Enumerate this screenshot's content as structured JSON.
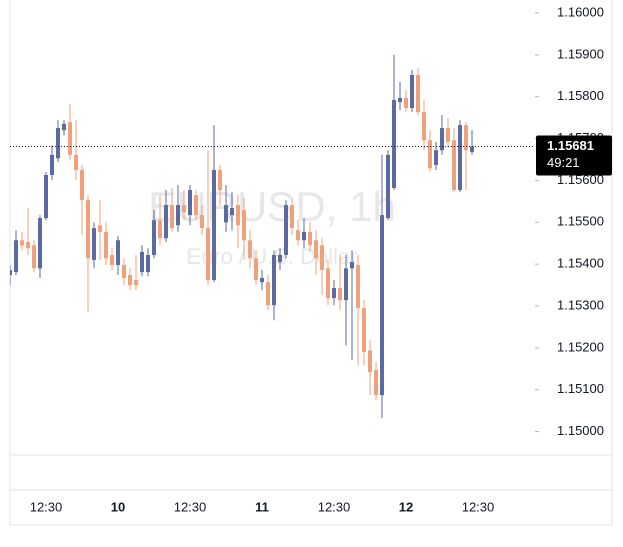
{
  "chart_data": {
    "type": "candlestick",
    "watermark": {
      "symbol": "EURUSD, 1h",
      "description": "Euro / U.S. Dollar"
    },
    "countdown": "49:21",
    "up_color": "#5b6aa0",
    "down_color": "#f0a17c",
    "categories": [
      null,
      null,
      null,
      null,
      null,
      null,
      "12:30",
      null,
      null,
      null,
      null,
      null,
      null,
      null,
      null,
      null,
      null,
      null,
      "10",
      null,
      null,
      null,
      null,
      null,
      null,
      null,
      null,
      null,
      null,
      null,
      "12:30",
      null,
      null,
      null,
      null,
      null,
      null,
      null,
      null,
      null,
      null,
      null,
      "11",
      null,
      null,
      null,
      null,
      null,
      null,
      null,
      null,
      null,
      null,
      null,
      "12:30",
      null,
      null,
      null,
      null,
      null,
      null,
      null,
      null,
      null,
      null,
      null,
      "12",
      null,
      null,
      null,
      null,
      null,
      null,
      null,
      null,
      null,
      null,
      null,
      "12:30"
    ],
    "open": [
      1.15374,
      1.15381,
      1.15457,
      1.15453,
      1.15445,
      1.1539,
      1.1551,
      1.15613,
      1.15653,
      1.1572,
      1.15739,
      1.15661,
      1.15625,
      1.15553,
      1.1541,
      1.15493,
      1.15477,
      1.15422,
      1.15398,
      1.15398,
      1.15374,
      1.15362,
      1.15381,
      1.15381,
      1.15422,
      1.15505,
      1.15462,
      1.15541,
      1.15493,
      1.15541,
      1.15517,
      1.15565,
      1.15517,
      1.15486,
      1.15362,
      1.15625,
      1.155,
      1.15517,
      1.15541,
      1.15529,
      1.15457,
      1.15414,
      1.15357,
      1.15357,
      1.15302,
      1.15405,
      1.15422,
      1.15541,
      1.15481,
      1.15457,
      1.15477,
      1.15457,
      1.15445,
      1.1539,
      1.15319,
      1.15343,
      1.15314,
      1.1539,
      1.15398,
      1.15295,
      1.15194,
      1.15147,
      1.15087,
      1.1551,
      1.15582,
      1.15787,
      1.15797,
      1.15773,
      1.15852,
      1.15763,
      1.15696,
      1.15637,
      1.15672,
      1.15725,
      1.15696,
      1.15577,
      1.15732,
      1.15668,
      null
    ],
    "high": [
      1.15398,
      1.15481,
      1.15477,
      1.15534,
      1.15457,
      1.15517,
      1.1562,
      1.15684,
      1.15744,
      1.15744,
      1.15782,
      1.15744,
      1.15637,
      1.15565,
      1.155,
      1.15553,
      1.155,
      1.15438,
      1.15467,
      1.15414,
      1.1539,
      1.15422,
      1.15445,
      1.15438,
      1.15529,
      1.15565,
      1.15577,
      1.15582,
      1.15589,
      1.15577,
      1.15589,
      1.15577,
      1.15541,
      1.15672,
      1.15732,
      1.15637,
      1.15589,
      1.15572,
      1.15565,
      1.15558,
      1.15481,
      1.15433,
      1.15386,
      1.15374,
      1.15433,
      1.15438,
      1.15553,
      1.15558,
      1.15505,
      1.1551,
      1.155,
      1.15481,
      1.15462,
      1.1541,
      1.15362,
      1.15422,
      1.15422,
      1.15433,
      1.15422,
      1.15314,
      1.15218,
      1.15166,
      1.15661,
      1.15672,
      1.159,
      1.15835,
      1.15816,
      1.15864,
      1.15868,
      1.15792,
      1.1572,
      1.15692,
      1.15756,
      1.15749,
      1.15725,
      1.15744,
      1.15739,
      1.1572,
      null
    ],
    "low": [
      1.1535,
      1.15374,
      1.15433,
      1.15422,
      1.15381,
      1.15367,
      1.15505,
      1.15601,
      1.15644,
      1.15708,
      1.15649,
      1.15601,
      1.15469,
      1.15285,
      1.1539,
      1.1541,
      1.15398,
      1.15386,
      1.15374,
      1.1535,
      1.15338,
      1.15338,
      1.15371,
      1.15371,
      1.15414,
      1.15445,
      1.15453,
      1.15477,
      1.15477,
      1.15505,
      1.15493,
      1.15505,
      1.15469,
      1.1535,
      1.15357,
      1.15541,
      1.15477,
      1.15481,
      1.15438,
      1.1541,
      1.1539,
      1.1535,
      1.15338,
      1.1529,
      1.15266,
      1.15386,
      1.15414,
      1.15469,
      1.15445,
      1.15438,
      1.15429,
      1.15374,
      1.15326,
      1.15302,
      1.15302,
      1.1529,
      1.15206,
      1.15171,
      1.15159,
      1.15159,
      1.15087,
      1.15075,
      1.15032,
      1.15505,
      1.15577,
      1.15768,
      1.15763,
      1.15763,
      1.15756,
      1.15672,
      1.1562,
      1.15625,
      1.15661,
      1.15677,
      1.15572,
      1.15572,
      1.15577,
      1.15661,
      null
    ],
    "close": [
      1.15386,
      1.15457,
      1.15445,
      1.15438,
      1.1539,
      1.1551,
      1.15613,
      1.15661,
      1.15725,
      1.15735,
      1.15661,
      1.15625,
      1.15553,
      1.15414,
      1.15486,
      1.15477,
      1.15414,
      1.15398,
      1.15457,
      1.15367,
      1.1535,
      1.1535,
      1.15429,
      1.15422,
      1.15505,
      1.15462,
      1.15541,
      1.15486,
      1.15541,
      1.15524,
      1.15577,
      1.15517,
      1.15486,
      1.15362,
      1.15625,
      1.15577,
      1.15541,
      1.15534,
      1.15493,
      1.15457,
      1.15414,
      1.15362,
      1.15367,
      1.15302,
      1.15422,
      1.15422,
      1.15541,
      1.15486,
      1.15457,
      1.15477,
      1.15445,
      1.15414,
      1.15386,
      1.15319,
      1.15343,
      1.15314,
      1.1539,
      1.15405,
      1.15295,
      1.1519,
      1.15142,
      1.15087,
      1.15517,
      1.15661,
      1.15792,
      1.15797,
      1.15773,
      1.15852,
      1.15763,
      1.15696,
      1.15629,
      1.15672,
      1.15725,
      1.15692,
      1.15577,
      1.15732,
      1.15672,
      1.15681,
      null
    ],
    "ylim": [
      1.14944,
      1.16031
    ],
    "yticks": [
      {
        "value": 1.15,
        "label": "1.15000"
      },
      {
        "value": 1.151,
        "label": "1.15100"
      },
      {
        "value": 1.152,
        "label": "1.15200"
      },
      {
        "value": 1.153,
        "label": "1.15300"
      },
      {
        "value": 1.154,
        "label": "1.15400"
      },
      {
        "value": 1.155,
        "label": "1.15500"
      },
      {
        "value": 1.156,
        "label": "1.15600"
      },
      {
        "value": 1.157,
        "label": "1.15700"
      },
      {
        "value": 1.158,
        "label": "1.15800"
      },
      {
        "value": 1.159,
        "label": "1.15900"
      },
      {
        "value": 1.16,
        "label": "1.16000"
      }
    ]
  }
}
